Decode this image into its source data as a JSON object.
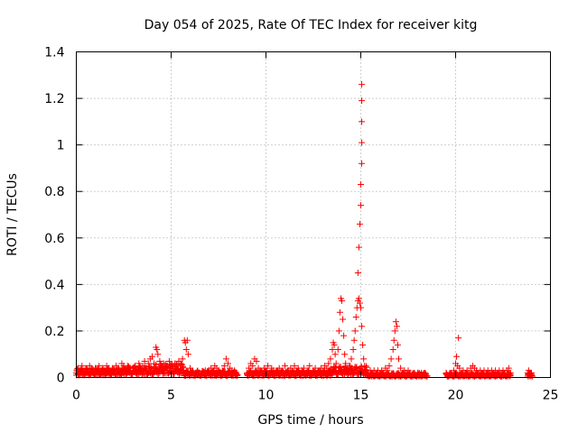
{
  "chart_data": {
    "type": "scatter",
    "title": "Day 054 of 2025, Rate Of TEC Index for receiver kitg",
    "xlabel": "GPS time / hours",
    "ylabel": "ROTI / TECUs",
    "xlim": [
      0,
      25
    ],
    "ylim": [
      0,
      1.4
    ],
    "xticks": [
      0,
      5,
      10,
      15,
      20,
      25
    ],
    "xtick_labels": [
      "0",
      "5",
      "10",
      "15",
      "20",
      "25"
    ],
    "yticks": [
      0,
      0.2,
      0.4,
      0.6,
      0.8,
      1,
      1.2,
      1.4
    ],
    "ytick_labels": [
      "0",
      "0.2",
      "0.4",
      "0.6",
      "0.8",
      "1",
      "1.2",
      "1.4"
    ],
    "grid": true,
    "marker": "plus",
    "color": "#ff0000",
    "series": [
      {
        "name": "ROTI",
        "points": [
          [
            0.0,
            0.02
          ],
          [
            0.1,
            0.04
          ],
          [
            0.2,
            0.03
          ],
          [
            0.3,
            0.05
          ],
          [
            0.4,
            0.02
          ],
          [
            0.5,
            0.04
          ],
          [
            0.6,
            0.03
          ],
          [
            0.7,
            0.05
          ],
          [
            0.8,
            0.04
          ],
          [
            0.9,
            0.02
          ],
          [
            1.0,
            0.04
          ],
          [
            1.1,
            0.03
          ],
          [
            1.2,
            0.05
          ],
          [
            1.3,
            0.02
          ],
          [
            1.4,
            0.04
          ],
          [
            1.5,
            0.03
          ],
          [
            1.6,
            0.05
          ],
          [
            1.7,
            0.04
          ],
          [
            1.8,
            0.02
          ],
          [
            1.9,
            0.04
          ],
          [
            2.0,
            0.03
          ],
          [
            2.1,
            0.05
          ],
          [
            2.2,
            0.04
          ],
          [
            2.3,
            0.02
          ],
          [
            2.4,
            0.06
          ],
          [
            2.5,
            0.04
          ],
          [
            2.6,
            0.03
          ],
          [
            2.7,
            0.05
          ],
          [
            2.8,
            0.04
          ],
          [
            2.9,
            0.02
          ],
          [
            3.0,
            0.04
          ],
          [
            3.1,
            0.05
          ],
          [
            3.2,
            0.03
          ],
          [
            3.3,
            0.06
          ],
          [
            3.4,
            0.04
          ],
          [
            3.5,
            0.05
          ],
          [
            3.6,
            0.07
          ],
          [
            3.7,
            0.04
          ],
          [
            3.8,
            0.06
          ],
          [
            3.9,
            0.08
          ],
          [
            4.0,
            0.09
          ],
          [
            4.1,
            0.06
          ],
          [
            4.2,
            0.13
          ],
          [
            4.25,
            0.12
          ],
          [
            4.3,
            0.1
          ],
          [
            4.4,
            0.07
          ],
          [
            4.5,
            0.05
          ],
          [
            4.6,
            0.06
          ],
          [
            4.7,
            0.04
          ],
          [
            4.8,
            0.05
          ],
          [
            4.9,
            0.07
          ],
          [
            5.0,
            0.05
          ],
          [
            5.1,
            0.04
          ],
          [
            5.2,
            0.06
          ],
          [
            5.3,
            0.05
          ],
          [
            5.4,
            0.07
          ],
          [
            5.5,
            0.06
          ],
          [
            5.6,
            0.08
          ],
          [
            5.7,
            0.16
          ],
          [
            5.75,
            0.15
          ],
          [
            5.8,
            0.12
          ],
          [
            5.85,
            0.16
          ],
          [
            5.9,
            0.1
          ],
          [
            6.0,
            0.04
          ],
          [
            6.1,
            0.02
          ],
          [
            6.2,
            0.01
          ],
          [
            6.3,
            0.02
          ],
          [
            6.4,
            0.01
          ],
          [
            6.5,
            0.02
          ],
          [
            6.6,
            0.01
          ],
          [
            6.7,
            0.02
          ],
          [
            6.8,
            0.03
          ],
          [
            6.9,
            0.02
          ],
          [
            7.0,
            0.03
          ],
          [
            7.1,
            0.04
          ],
          [
            7.2,
            0.03
          ],
          [
            7.3,
            0.05
          ],
          [
            7.4,
            0.04
          ],
          [
            7.5,
            0.03
          ],
          [
            7.6,
            0.02
          ],
          [
            7.7,
            0.03
          ],
          [
            7.8,
            0.05
          ],
          [
            7.9,
            0.08
          ],
          [
            8.0,
            0.06
          ],
          [
            8.1,
            0.04
          ],
          [
            8.2,
            0.03
          ],
          [
            8.3,
            0.02
          ],
          [
            8.4,
            0.01
          ],
          [
            9.0,
            0.02
          ],
          [
            9.1,
            0.04
          ],
          [
            9.2,
            0.06
          ],
          [
            9.3,
            0.05
          ],
          [
            9.4,
            0.08
          ],
          [
            9.5,
            0.07
          ],
          [
            9.6,
            0.04
          ],
          [
            9.7,
            0.03
          ],
          [
            9.8,
            0.02
          ],
          [
            9.9,
            0.04
          ],
          [
            10.0,
            0.03
          ],
          [
            10.1,
            0.05
          ],
          [
            10.2,
            0.02
          ],
          [
            10.3,
            0.04
          ],
          [
            10.4,
            0.03
          ],
          [
            10.5,
            0.02
          ],
          [
            10.6,
            0.03
          ],
          [
            10.7,
            0.04
          ],
          [
            10.8,
            0.02
          ],
          [
            10.9,
            0.03
          ],
          [
            11.0,
            0.05
          ],
          [
            11.1,
            0.02
          ],
          [
            11.2,
            0.03
          ],
          [
            11.3,
            0.04
          ],
          [
            11.4,
            0.02
          ],
          [
            11.5,
            0.05
          ],
          [
            11.6,
            0.03
          ],
          [
            11.7,
            0.04
          ],
          [
            11.8,
            0.02
          ],
          [
            11.9,
            0.03
          ],
          [
            12.0,
            0.04
          ],
          [
            12.1,
            0.02
          ],
          [
            12.2,
            0.03
          ],
          [
            12.3,
            0.05
          ],
          [
            12.4,
            0.02
          ],
          [
            12.5,
            0.03
          ],
          [
            12.6,
            0.04
          ],
          [
            12.7,
            0.02
          ],
          [
            12.8,
            0.03
          ],
          [
            12.9,
            0.04
          ],
          [
            13.0,
            0.03
          ],
          [
            13.1,
            0.05
          ],
          [
            13.2,
            0.04
          ],
          [
            13.3,
            0.06
          ],
          [
            13.4,
            0.08
          ],
          [
            13.5,
            0.12
          ],
          [
            13.55,
            0.15
          ],
          [
            13.6,
            0.14
          ],
          [
            13.65,
            0.1
          ],
          [
            13.7,
            0.06
          ],
          [
            13.8,
            0.12
          ],
          [
            13.85,
            0.2
          ],
          [
            13.9,
            0.28
          ],
          [
            13.95,
            0.34
          ],
          [
            14.0,
            0.33
          ],
          [
            14.05,
            0.25
          ],
          [
            14.1,
            0.18
          ],
          [
            14.15,
            0.1
          ],
          [
            14.2,
            0.06
          ],
          [
            14.3,
            0.04
          ],
          [
            14.4,
            0.05
          ],
          [
            14.5,
            0.08
          ],
          [
            14.6,
            0.12
          ],
          [
            14.65,
            0.16
          ],
          [
            14.7,
            0.2
          ],
          [
            14.75,
            0.26
          ],
          [
            14.8,
            0.3
          ],
          [
            14.85,
            0.33
          ],
          [
            14.9,
            0.34
          ],
          [
            14.95,
            0.32
          ],
          [
            14.85,
            0.45
          ],
          [
            14.9,
            0.56
          ],
          [
            14.95,
            0.66
          ],
          [
            15.0,
            0.74
          ],
          [
            15.0,
            0.83
          ],
          [
            15.05,
            0.92
          ],
          [
            15.05,
            1.01
          ],
          [
            15.05,
            1.1
          ],
          [
            15.05,
            1.19
          ],
          [
            15.05,
            1.26
          ],
          [
            15.0,
            0.3
          ],
          [
            15.05,
            0.22
          ],
          [
            15.1,
            0.14
          ],
          [
            15.15,
            0.08
          ],
          [
            15.2,
            0.05
          ],
          [
            15.3,
            0.03
          ],
          [
            15.4,
            0.02
          ],
          [
            15.5,
            0.03
          ],
          [
            15.6,
            0.02
          ],
          [
            15.7,
            0.03
          ],
          [
            15.8,
            0.02
          ],
          [
            15.9,
            0.03
          ],
          [
            16.0,
            0.02
          ],
          [
            16.1,
            0.03
          ],
          [
            16.2,
            0.02
          ],
          [
            16.3,
            0.04
          ],
          [
            16.4,
            0.03
          ],
          [
            16.5,
            0.05
          ],
          [
            16.6,
            0.08
          ],
          [
            16.7,
            0.12
          ],
          [
            16.75,
            0.16
          ],
          [
            16.8,
            0.2
          ],
          [
            16.85,
            0.24
          ],
          [
            16.9,
            0.22
          ],
          [
            16.95,
            0.14
          ],
          [
            17.0,
            0.08
          ],
          [
            17.1,
            0.04
          ],
          [
            17.2,
            0.02
          ],
          [
            17.3,
            0.03
          ],
          [
            17.4,
            0.02
          ],
          [
            17.5,
            0.03
          ],
          [
            17.6,
            0.02
          ],
          [
            17.7,
            0.01
          ],
          [
            17.8,
            0.02
          ],
          [
            17.9,
            0.01
          ],
          [
            18.0,
            0.02
          ],
          [
            18.1,
            0.01
          ],
          [
            18.2,
            0.02
          ],
          [
            18.3,
            0.01
          ],
          [
            18.4,
            0.02
          ],
          [
            19.5,
            0.02
          ],
          [
            19.6,
            0.01
          ],
          [
            19.7,
            0.02
          ],
          [
            19.8,
            0.01
          ],
          [
            19.9,
            0.03
          ],
          [
            20.0,
            0.06
          ],
          [
            20.05,
            0.09
          ],
          [
            20.1,
            0.05
          ],
          [
            20.15,
            0.17
          ],
          [
            20.2,
            0.04
          ],
          [
            20.3,
            0.02
          ],
          [
            20.4,
            0.03
          ],
          [
            20.5,
            0.02
          ],
          [
            20.6,
            0.03
          ],
          [
            20.7,
            0.02
          ],
          [
            20.8,
            0.04
          ],
          [
            20.9,
            0.05
          ],
          [
            21.0,
            0.04
          ],
          [
            21.1,
            0.03
          ],
          [
            21.2,
            0.02
          ],
          [
            21.3,
            0.03
          ],
          [
            21.4,
            0.02
          ],
          [
            21.5,
            0.03
          ],
          [
            21.6,
            0.02
          ],
          [
            21.7,
            0.03
          ],
          [
            21.8,
            0.02
          ],
          [
            21.9,
            0.03
          ],
          [
            22.0,
            0.02
          ],
          [
            22.1,
            0.03
          ],
          [
            22.2,
            0.02
          ],
          [
            22.3,
            0.03
          ],
          [
            22.4,
            0.02
          ],
          [
            22.5,
            0.03
          ],
          [
            22.6,
            0.02
          ],
          [
            22.7,
            0.03
          ],
          [
            22.8,
            0.04
          ],
          [
            22.9,
            0.02
          ],
          [
            23.8,
            0.02
          ],
          [
            23.85,
            0.03
          ],
          [
            23.9,
            0.01
          ],
          [
            23.95,
            0.02
          ],
          [
            24.0,
            0.02
          ]
        ],
        "bands": [
          {
            "x_start": 0.0,
            "x_end": 2.4,
            "y_max": 0.04
          },
          {
            "x_start": 2.4,
            "x_end": 4.2,
            "y_max": 0.05
          },
          {
            "x_start": 4.2,
            "x_end": 5.7,
            "y_max": 0.06
          },
          {
            "x_start": 5.7,
            "x_end": 8.5,
            "y_max": 0.03
          },
          {
            "x_start": 9.0,
            "x_end": 13.4,
            "y_max": 0.03
          },
          {
            "x_start": 13.4,
            "x_end": 15.3,
            "y_max": 0.05
          },
          {
            "x_start": 15.3,
            "x_end": 18.5,
            "y_max": 0.02
          },
          {
            "x_start": 19.5,
            "x_end": 22.9,
            "y_max": 0.02
          },
          {
            "x_start": 23.8,
            "x_end": 24.05,
            "y_max": 0.02
          }
        ]
      }
    ]
  }
}
